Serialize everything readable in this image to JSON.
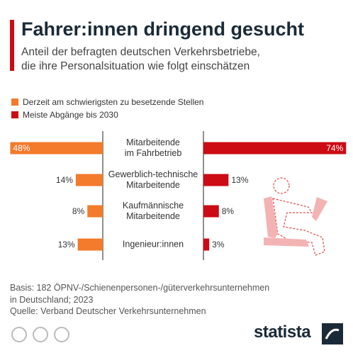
{
  "chart_data": {
    "type": "butterfly",
    "title": "Fahrer:innen dringend gesucht",
    "subtitle": "Anteil der befragten deutschen Verkehrsbetriebe,\ndie ihre Personalsituation wie folgt einschätzen",
    "categories": [
      "Mitarbeitende\nim Fahrbetrieb",
      "Gewerblich-technische\nMitarbeitende",
      "Kaufmännische\nMitarbeitende",
      "Ingenieur:innen"
    ],
    "series": [
      {
        "name": "Derzeit am schwierigsten zu besetzende Stellen",
        "color": "#f47a2c",
        "values": [
          48,
          14,
          8,
          13
        ],
        "value_labels": [
          "48%",
          "14%",
          "8%",
          "13%"
        ]
      },
      {
        "name": "Meiste Abgänge bis 2030",
        "color": "#cc0b14",
        "values": [
          74,
          13,
          8,
          3
        ],
        "value_labels": [
          "74%",
          "13%",
          "8%",
          "3%"
        ]
      }
    ],
    "basis": "Basis: 182 ÖPNV-/Schienenpersonen-/güterverkehrsunternehmen\nin Deutschland; 2023",
    "source": "Quelle: Verband Deutscher Verkehrsunternehmen",
    "brand": "statista"
  }
}
